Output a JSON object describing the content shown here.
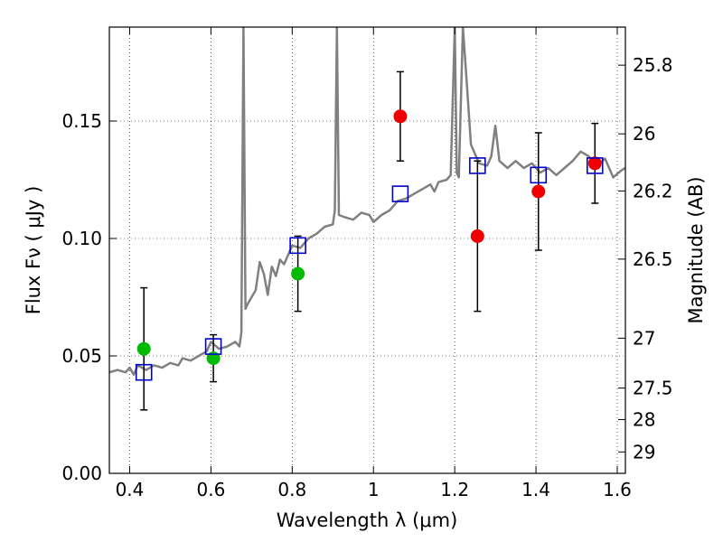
{
  "chart_data": {
    "type": "scatter",
    "xlabel": "Wavelength  λ (μm)",
    "ylabel": "Flux  Fν  ( μJy )",
    "ylabel_right": "Magnitude (AB)",
    "xlim": [
      0.35,
      1.62
    ],
    "ylim": [
      0.0,
      0.19
    ],
    "grid": true,
    "x_ticks": [
      {
        "value": 0.4,
        "label": "0.4"
      },
      {
        "value": 0.6,
        "label": "0.6"
      },
      {
        "value": 0.8,
        "label": "0.8"
      },
      {
        "value": 1.0,
        "label": "1"
      },
      {
        "value": 1.2,
        "label": "1.2"
      },
      {
        "value": 1.4,
        "label": "1.4"
      },
      {
        "value": 1.6,
        "label": "1.6"
      }
    ],
    "y_ticks": [
      {
        "value": 0.0,
        "label": "0.00"
      },
      {
        "value": 0.05,
        "label": "0.05"
      },
      {
        "value": 0.1,
        "label": "0.10"
      },
      {
        "value": 0.15,
        "label": "0.15"
      }
    ],
    "right_ticks": [
      {
        "value": 25.8,
        "label": "25.8"
      },
      {
        "value": 26.0,
        "label": "26"
      },
      {
        "value": 26.2,
        "label": "26.2"
      },
      {
        "value": 26.5,
        "label": "26.5"
      },
      {
        "value": 27.0,
        "label": "27"
      },
      {
        "value": 27.5,
        "label": "27.5"
      },
      {
        "value": 28.0,
        "label": "28"
      },
      {
        "value": 29.0,
        "label": "29"
      }
    ],
    "series": [
      {
        "kind": "points",
        "marker": "circle",
        "color": "#00bb00",
        "points": [
          {
            "x": 0.435,
            "y": 0.053,
            "err": 0.026
          },
          {
            "x": 0.606,
            "y": 0.049,
            "err": 0.01
          },
          {
            "x": 0.814,
            "y": 0.085,
            "err": 0.016
          }
        ]
      },
      {
        "kind": "points",
        "marker": "circle",
        "color": "#ee0000",
        "points": [
          {
            "x": 1.066,
            "y": 0.152,
            "err": 0.019
          },
          {
            "x": 1.256,
            "y": 0.101,
            "err": 0.032
          },
          {
            "x": 1.406,
            "y": 0.12,
            "err": 0.025
          },
          {
            "x": 1.545,
            "y": 0.132,
            "err": 0.017
          }
        ]
      },
      {
        "kind": "model_points",
        "marker": "open-square",
        "color": "#0000cc",
        "points": [
          {
            "x": 0.435,
            "y": 0.043
          },
          {
            "x": 0.606,
            "y": 0.054
          },
          {
            "x": 0.814,
            "y": 0.097
          },
          {
            "x": 1.066,
            "y": 0.119
          },
          {
            "x": 1.256,
            "y": 0.131
          },
          {
            "x": 1.406,
            "y": 0.127
          },
          {
            "x": 1.545,
            "y": 0.131
          }
        ]
      },
      {
        "kind": "line",
        "color": "#808080",
        "points": [
          [
            0.35,
            0.043
          ],
          [
            0.37,
            0.044
          ],
          [
            0.39,
            0.043
          ],
          [
            0.4,
            0.045
          ],
          [
            0.41,
            0.042
          ],
          [
            0.42,
            0.046
          ],
          [
            0.44,
            0.044
          ],
          [
            0.46,
            0.046
          ],
          [
            0.48,
            0.045
          ],
          [
            0.5,
            0.047
          ],
          [
            0.52,
            0.046
          ],
          [
            0.53,
            0.049
          ],
          [
            0.55,
            0.048
          ],
          [
            0.57,
            0.05
          ],
          [
            0.59,
            0.052
          ],
          [
            0.6,
            0.056
          ],
          [
            0.62,
            0.053
          ],
          [
            0.64,
            0.054
          ],
          [
            0.66,
            0.056
          ],
          [
            0.67,
            0.054
          ],
          [
            0.675,
            0.06
          ],
          [
            0.68,
            0.19
          ],
          [
            0.685,
            0.07
          ],
          [
            0.69,
            0.072
          ],
          [
            0.7,
            0.075
          ],
          [
            0.71,
            0.078
          ],
          [
            0.72,
            0.09
          ],
          [
            0.73,
            0.085
          ],
          [
            0.74,
            0.076
          ],
          [
            0.75,
            0.088
          ],
          [
            0.76,
            0.084
          ],
          [
            0.77,
            0.091
          ],
          [
            0.78,
            0.089
          ],
          [
            0.79,
            0.093
          ],
          [
            0.8,
            0.097
          ],
          [
            0.82,
            0.096
          ],
          [
            0.84,
            0.1
          ],
          [
            0.86,
            0.102
          ],
          [
            0.88,
            0.105
          ],
          [
            0.9,
            0.106
          ],
          [
            0.905,
            0.112
          ],
          [
            0.91,
            0.19
          ],
          [
            0.915,
            0.11
          ],
          [
            0.93,
            0.109
          ],
          [
            0.95,
            0.108
          ],
          [
            0.97,
            0.111
          ],
          [
            0.99,
            0.11
          ],
          [
            1.0,
            0.107
          ],
          [
            1.02,
            0.11
          ],
          [
            1.04,
            0.112
          ],
          [
            1.06,
            0.116
          ],
          [
            1.08,
            0.117
          ],
          [
            1.1,
            0.119
          ],
          [
            1.12,
            0.121
          ],
          [
            1.14,
            0.123
          ],
          [
            1.15,
            0.12
          ],
          [
            1.16,
            0.124
          ],
          [
            1.18,
            0.125
          ],
          [
            1.19,
            0.127
          ],
          [
            1.2,
            0.19
          ],
          [
            1.205,
            0.128
          ],
          [
            1.21,
            0.126
          ],
          [
            1.22,
            0.19
          ],
          [
            1.23,
            0.165
          ],
          [
            1.24,
            0.14
          ],
          [
            1.26,
            0.132
          ],
          [
            1.28,
            0.131
          ],
          [
            1.29,
            0.135
          ],
          [
            1.3,
            0.148
          ],
          [
            1.31,
            0.133
          ],
          [
            1.33,
            0.13
          ],
          [
            1.35,
            0.133
          ],
          [
            1.37,
            0.13
          ],
          [
            1.39,
            0.132
          ],
          [
            1.41,
            0.128
          ],
          [
            1.43,
            0.13
          ],
          [
            1.45,
            0.127
          ],
          [
            1.47,
            0.13
          ],
          [
            1.49,
            0.133
          ],
          [
            1.51,
            0.137
          ],
          [
            1.53,
            0.135
          ],
          [
            1.55,
            0.131
          ],
          [
            1.57,
            0.134
          ],
          [
            1.59,
            0.126
          ],
          [
            1.61,
            0.129
          ],
          [
            1.62,
            0.13
          ]
        ]
      }
    ]
  }
}
